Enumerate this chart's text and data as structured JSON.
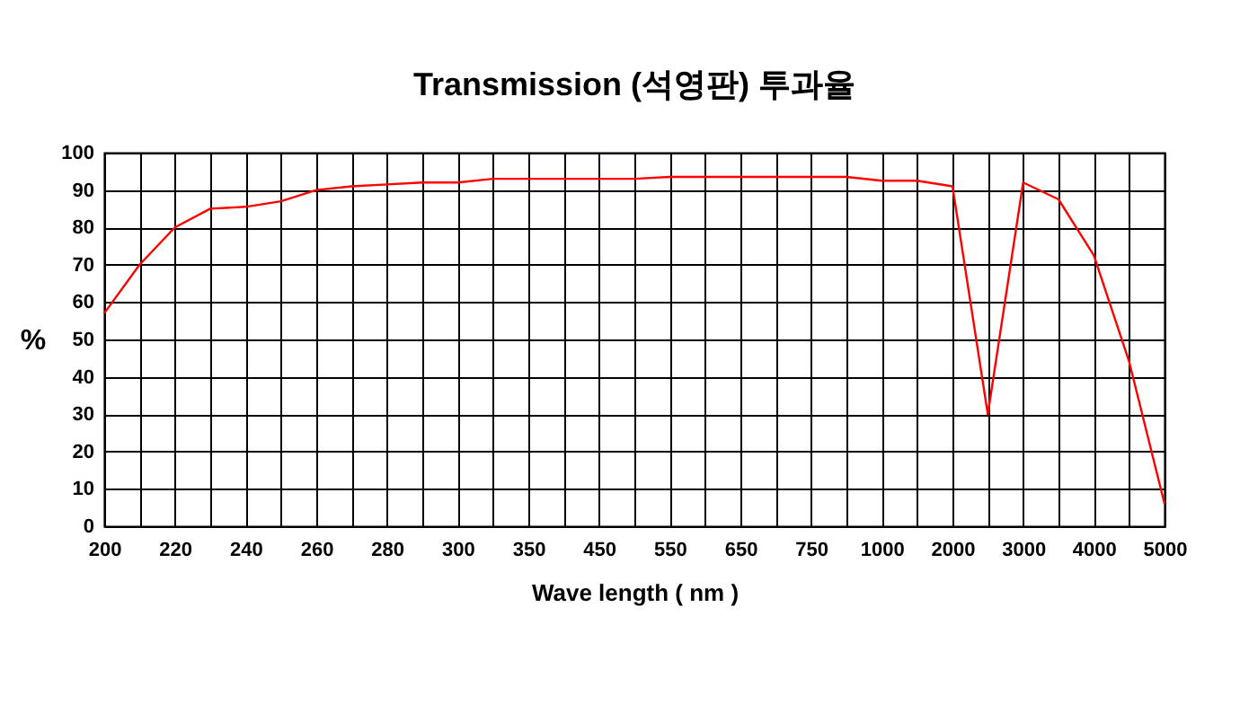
{
  "chart_data": {
    "type": "line",
    "title": "Transmission (석영판)  투과율",
    "xlabel": "Wave length ( nm )",
    "ylabel": "%",
    "categories": [
      "200",
      null,
      "220",
      null,
      "240",
      null,
      "260",
      null,
      "280",
      null,
      "300",
      null,
      "350",
      null,
      "450",
      null,
      "550",
      null,
      "650",
      null,
      "750",
      null,
      "1000",
      null,
      "2000",
      null,
      "3000",
      null,
      "4000",
      null,
      "5000"
    ],
    "series": [
      {
        "color": "#ff0000",
        "values": [
          57,
          70,
          80,
          85,
          85.5,
          87,
          90,
          91,
          91.5,
          92,
          92,
          93,
          93,
          93,
          93,
          93,
          93.5,
          93.5,
          93.5,
          93.5,
          93.5,
          93.5,
          92.5,
          92.5,
          91,
          30,
          92,
          87.5,
          72.5,
          44,
          6
        ]
      }
    ],
    "ylim": [
      0,
      100
    ],
    "yticks": [
      0,
      10,
      20,
      30,
      40,
      50,
      60,
      70,
      80,
      90,
      100
    ],
    "grid": true,
    "legend": false,
    "marker": "none",
    "line_style": "solid"
  }
}
